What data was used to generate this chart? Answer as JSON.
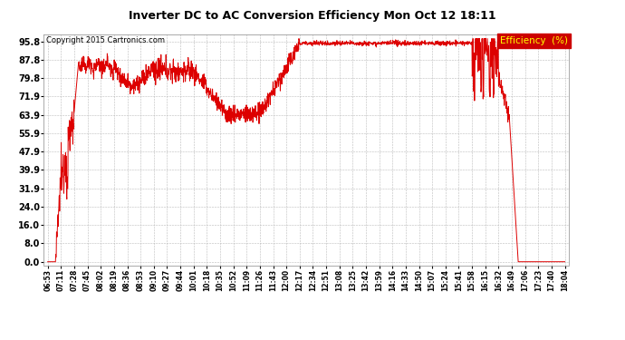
{
  "title": "Inverter DC to AC Conversion Efficiency Mon Oct 12 18:11",
  "copyright": "Copyright 2015 Cartronics.com",
  "legend_label": "Efficiency  (%)",
  "line_color": "#dd0000",
  "bg_color": "#f0f0f0",
  "plot_bg": "#f0f0f0",
  "grid_color": "#aaaaaa",
  "legend_bg": "#cc0000",
  "legend_fg": "#ffff00",
  "yticks": [
    0.0,
    8.0,
    16.0,
    24.0,
    31.9,
    39.9,
    47.9,
    55.9,
    63.9,
    71.9,
    79.8,
    87.8,
    95.8
  ],
  "ylim": [
    -1.5,
    99
  ],
  "xtick_labels": [
    "06:53",
    "07:11",
    "07:28",
    "07:45",
    "08:02",
    "08:19",
    "08:36",
    "08:53",
    "09:10",
    "09:27",
    "09:44",
    "10:01",
    "10:18",
    "10:35",
    "10:52",
    "11:09",
    "11:26",
    "11:43",
    "12:00",
    "12:17",
    "12:34",
    "12:51",
    "13:08",
    "13:25",
    "13:42",
    "13:59",
    "14:16",
    "14:33",
    "14:50",
    "15:07",
    "15:24",
    "15:41",
    "15:58",
    "16:15",
    "16:32",
    "16:49",
    "17:06",
    "17:23",
    "17:40",
    "18:04"
  ]
}
